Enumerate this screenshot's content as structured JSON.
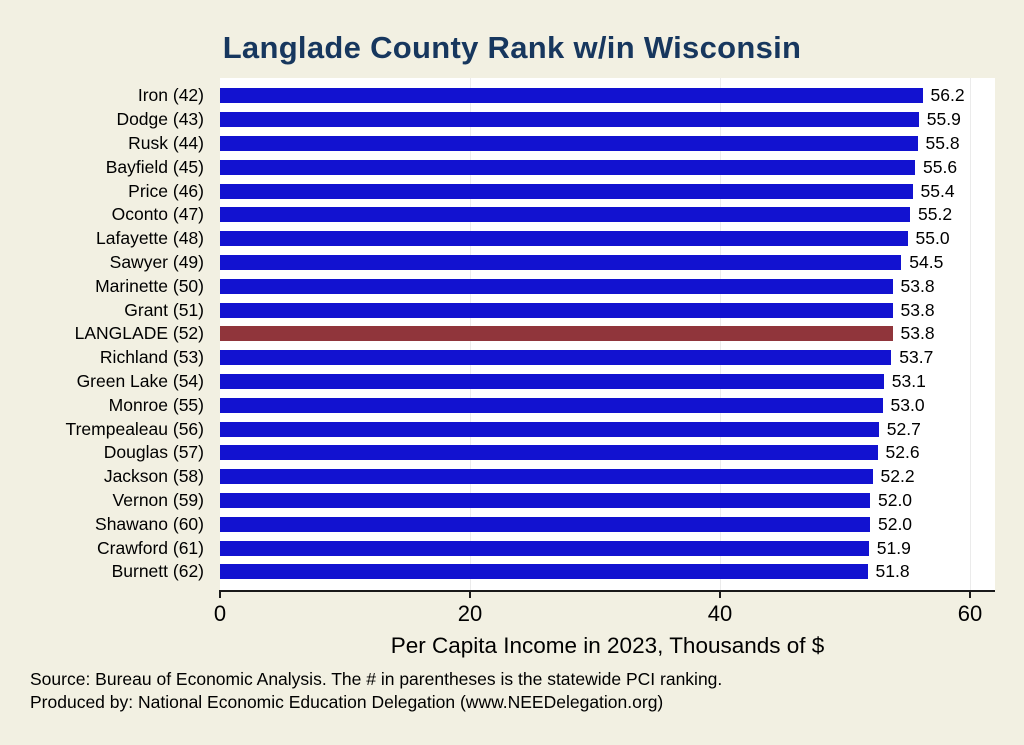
{
  "title": "Langlade County Rank w/in Wisconsin",
  "xlabel": "Per Capita Income in 2023, Thousands of $",
  "notes": {
    "line1": "Source: Bureau of Economic Analysis. The # in parentheses is the statewide PCI ranking.",
    "line2": "Produced by: National Economic Education Delegation (www.NEEDelegation.org)"
  },
  "colors": {
    "bar": "#1212d0",
    "highlight": "#90353b",
    "title": "#17375e",
    "background": "#f2f0e2",
    "plot_background": "#ffffff",
    "axis": "#1a1a1a",
    "gridline": "#ebebeb"
  },
  "chart_data": {
    "type": "bar",
    "orientation": "horizontal",
    "title": "Langlade County Rank w/in Wisconsin",
    "xlabel": "Per Capita Income in 2023, Thousands of $",
    "categories": [
      "Iron (42)",
      "Dodge (43)",
      "Rusk (44)",
      "Bayfield (45)",
      "Price (46)",
      "Oconto (47)",
      "Lafayette (48)",
      "Sawyer (49)",
      "Marinette (50)",
      "Grant (51)",
      "LANGLADE (52)",
      "Richland (53)",
      "Green Lake (54)",
      "Monroe (55)",
      "Trempealeau (56)",
      "Douglas (57)",
      "Jackson (58)",
      "Vernon (59)",
      "Shawano (60)",
      "Crawford (61)",
      "Burnett (62)"
    ],
    "values": [
      56.2,
      55.9,
      55.8,
      55.6,
      55.4,
      55.2,
      55.0,
      54.5,
      53.8,
      53.8,
      53.8,
      53.7,
      53.1,
      53.0,
      52.7,
      52.6,
      52.2,
      52.0,
      52.0,
      51.9,
      51.8
    ],
    "highlight_category": "LANGLADE (52)",
    "xlim": [
      0,
      62
    ],
    "xticks": [
      0,
      20,
      40,
      60
    ],
    "grid": "vertical-light",
    "legend": "none"
  }
}
